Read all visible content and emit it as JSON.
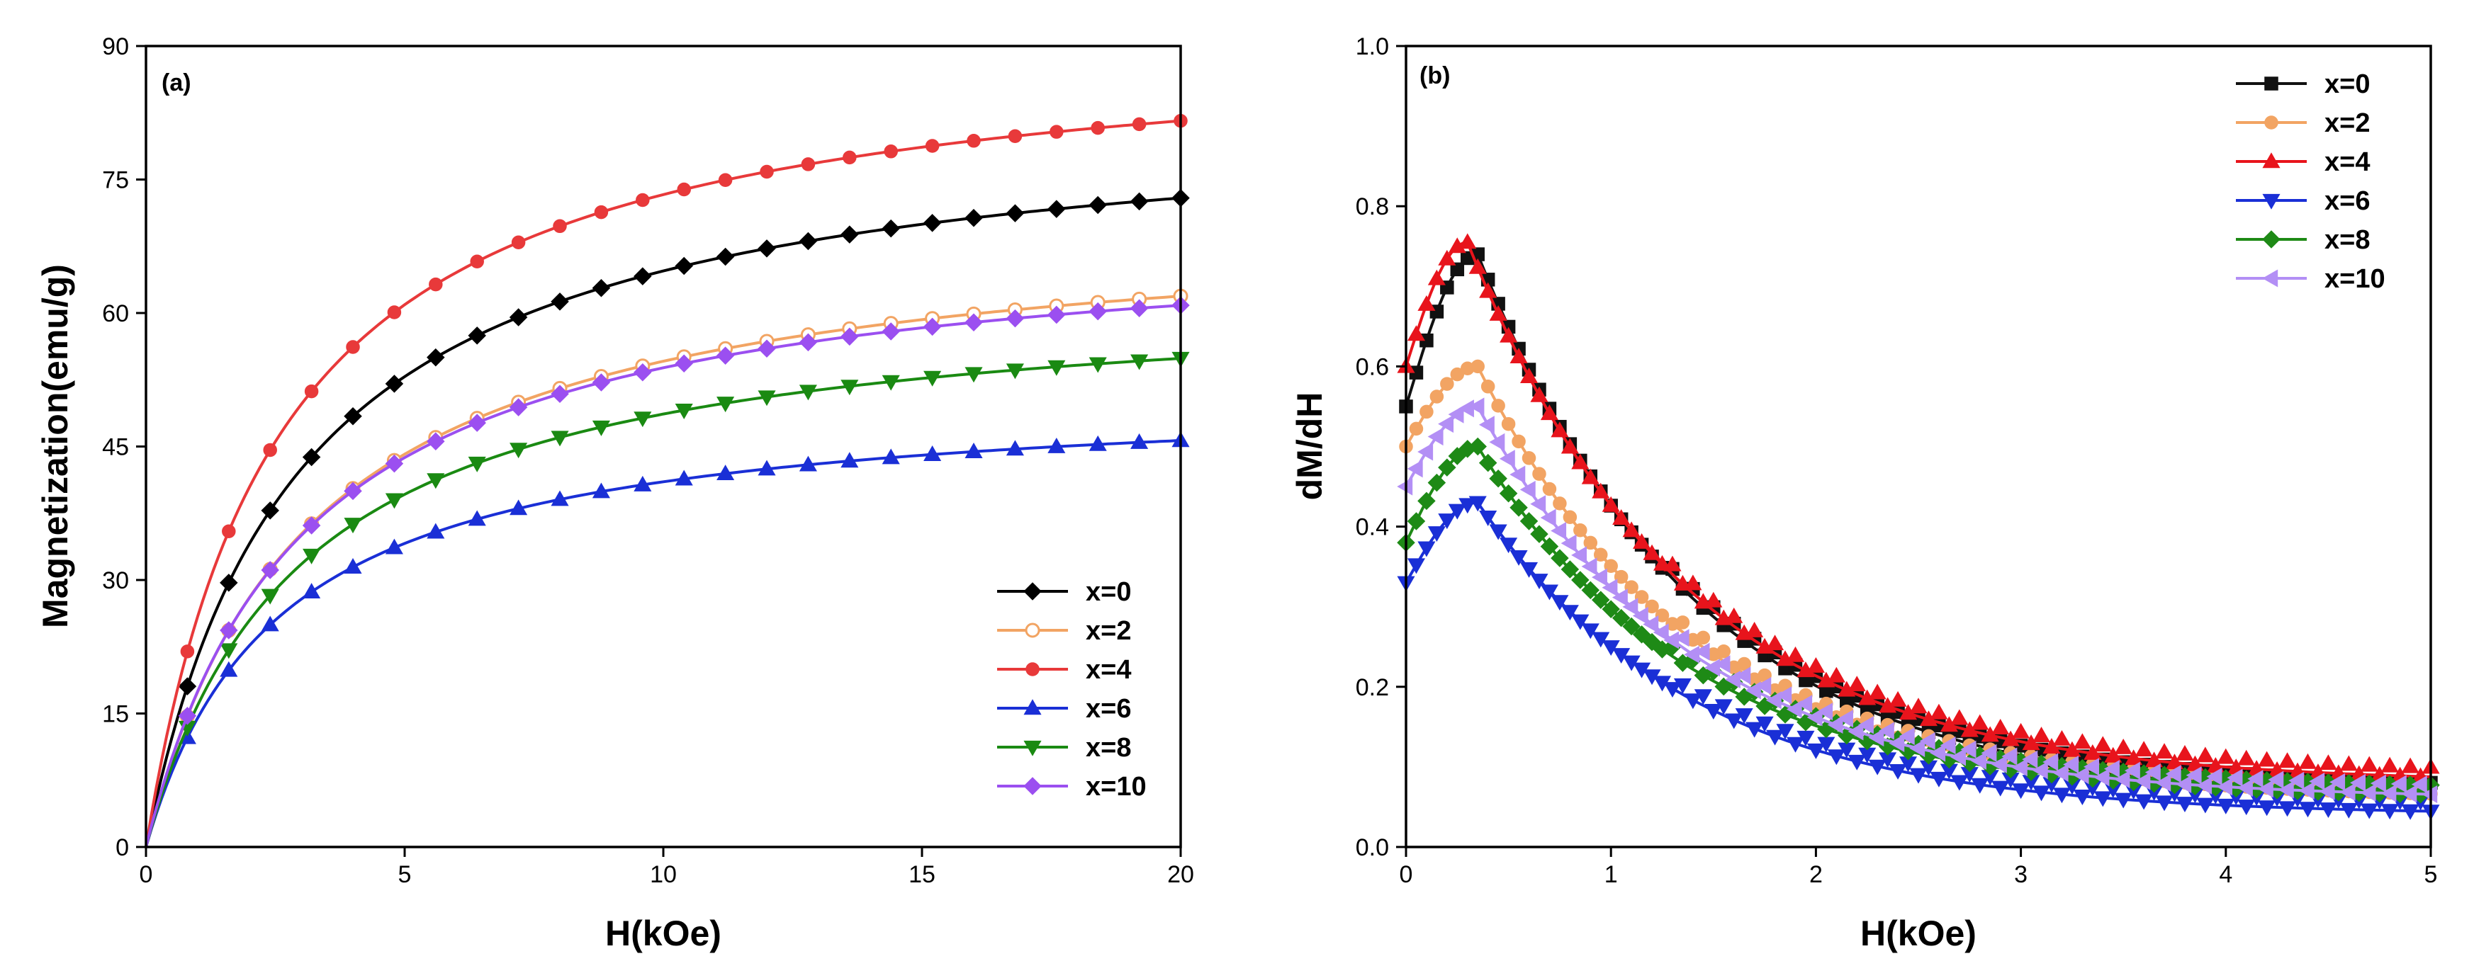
{
  "chart_data": [
    {
      "type": "line",
      "panel_label": "(a)",
      "xlabel": "H(kOe)",
      "ylabel": "Magnetization(emu/g)",
      "xlim": [
        0,
        20
      ],
      "ylim": [
        0,
        90
      ],
      "xticks": [
        0,
        5,
        10,
        15,
        20
      ],
      "yticks": [
        0,
        15,
        30,
        45,
        60,
        75,
        90
      ],
      "legend_position": "bottom-right",
      "marker_step": 0.8,
      "series": [
        {
          "name": "x=0",
          "color": "#000000",
          "marker": "diamond",
          "msat": 83.5,
          "h0": 2.9
        },
        {
          "name": "x=2",
          "color": "#f2a463",
          "marker": "circle-open",
          "msat": 71.5,
          "h0": 3.1
        },
        {
          "name": "x=4",
          "color": "#e8393a",
          "marker": "circle",
          "msat": 92.0,
          "h0": 2.55
        },
        {
          "name": "x=6",
          "color": "#1a2fd6",
          "marker": "triangle-up",
          "msat": 51.5,
          "h0": 2.55
        },
        {
          "name": "x=8",
          "color": "#1a8a12",
          "marker": "triangle-down",
          "msat": 63.0,
          "h0": 2.95
        },
        {
          "name": "x=10",
          "color": "#9b4ff0",
          "marker": "diamond",
          "msat": 70.0,
          "h0": 3.0
        }
      ]
    },
    {
      "type": "line",
      "panel_label": "(b)",
      "xlabel": "H(kOe)",
      "ylabel": "dM/dH",
      "xlim": [
        0,
        5
      ],
      "ylim": [
        0.0,
        1.0
      ],
      "xticks": [
        0,
        1,
        2,
        3,
        4,
        5
      ],
      "yticks": [
        0.0,
        0.2,
        0.4,
        0.6,
        0.8,
        1.0
      ],
      "legend_position": "top-right",
      "marker_step": 0.05,
      "series": [
        {
          "name": "x=0",
          "color": "#111111",
          "marker": "square",
          "start": 0.55,
          "peak": 0.74,
          "peak_h": 0.35,
          "end": 0.06
        },
        {
          "name": "x=2",
          "color": "#f2a463",
          "marker": "circle",
          "start": 0.5,
          "peak": 0.6,
          "peak_h": 0.35,
          "end": 0.06
        },
        {
          "name": "x=4",
          "color": "#e8141c",
          "marker": "triangle-up",
          "start": 0.6,
          "peak": 0.755,
          "peak_h": 0.3,
          "end": 0.08
        },
        {
          "name": "x=6",
          "color": "#1a2fd6",
          "marker": "triangle-down",
          "start": 0.33,
          "peak": 0.43,
          "peak_h": 0.35,
          "end": 0.04
        },
        {
          "name": "x=8",
          "color": "#1e8a16",
          "marker": "diamond",
          "start": 0.38,
          "peak": 0.5,
          "peak_h": 0.35,
          "end": 0.06
        },
        {
          "name": "x=10",
          "color": "#b38ff5",
          "marker": "triangle-left",
          "start": 0.45,
          "peak": 0.55,
          "peak_h": 0.35,
          "end": 0.06
        }
      ]
    }
  ]
}
